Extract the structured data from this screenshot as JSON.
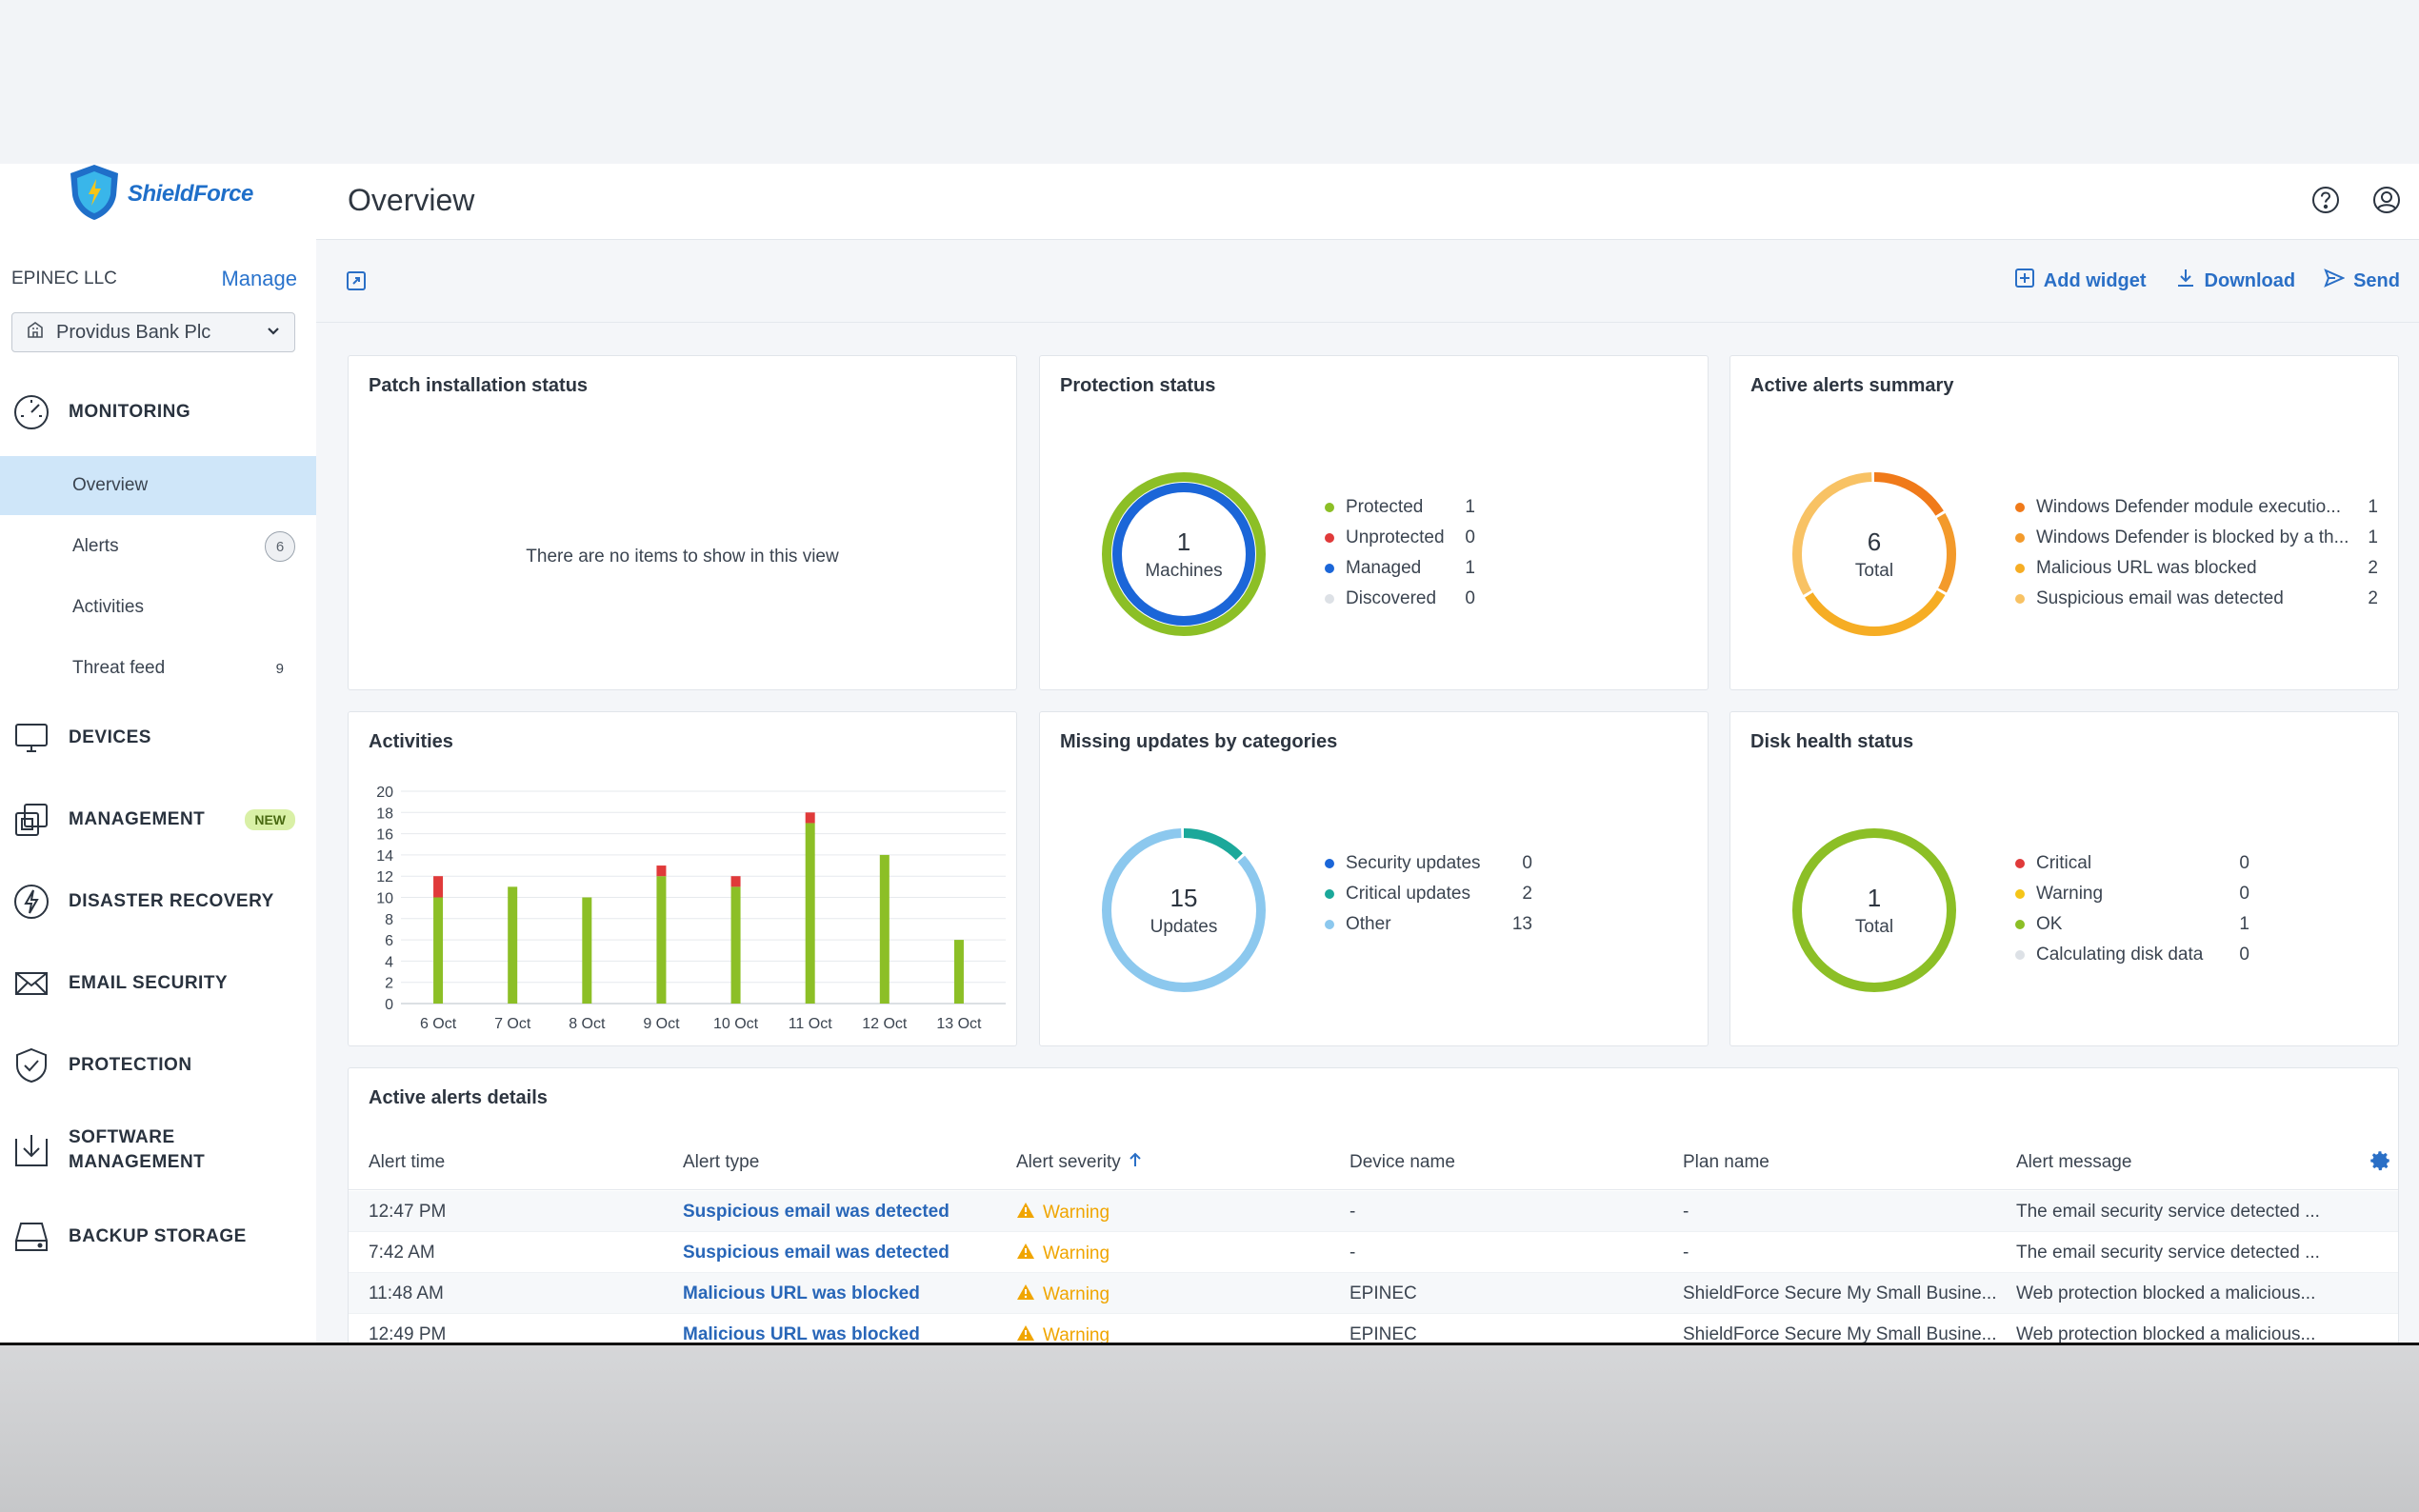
{
  "brand": {
    "name": "ShieldForce"
  },
  "org": {
    "name": "EPINEC LLC",
    "manage_label": "Manage",
    "tenant": "Providus Bank Plc"
  },
  "sidebar": {
    "monitoring": "MONITORING",
    "items": [
      {
        "label": "Overview"
      },
      {
        "label": "Alerts",
        "count": "6"
      },
      {
        "label": "Activities"
      },
      {
        "label": "Threat feed",
        "count": "9"
      }
    ],
    "devices": "DEVICES",
    "management": "MANAGEMENT",
    "management_badge": "NEW",
    "disaster_recovery": "DISASTER RECOVERY",
    "email_security": "EMAIL SECURITY",
    "protection": "PROTECTION",
    "software_management_1": "SOFTWARE",
    "software_management_2": "MANAGEMENT",
    "backup_storage": "BACKUP STORAGE"
  },
  "header": {
    "title": "Overview"
  },
  "toolbar": {
    "add_widget": "Add widget",
    "download": "Download",
    "send": "Send"
  },
  "widgets": {
    "patch": {
      "title": "Patch installation status",
      "empty": "There are no items to show in this view"
    },
    "protection": {
      "title": "Protection status",
      "total": "1",
      "unit": "Machines",
      "legend": [
        {
          "label": "Protected",
          "value": "1",
          "color": "#8cbf26"
        },
        {
          "label": "Unprotected",
          "value": "0",
          "color": "#e03a3a"
        },
        {
          "label": "Managed",
          "value": "1",
          "color": "#1b66d8"
        },
        {
          "label": "Discovered",
          "value": "0",
          "color": "#dde1e6"
        }
      ]
    },
    "alerts_summary": {
      "title": "Active alerts summary",
      "total": "6",
      "unit": "Total",
      "legend": [
        {
          "label": "Windows Defender module executio...",
          "value": "1",
          "color": "#f07a1a"
        },
        {
          "label": "Windows Defender is blocked by a th...",
          "value": "1",
          "color": "#f39a2b"
        },
        {
          "label": "Malicious URL was blocked",
          "value": "2",
          "color": "#f6ad24"
        },
        {
          "label": "Suspicious email was detected",
          "value": "2",
          "color": "#f8c264"
        }
      ]
    },
    "activities": {
      "title": "Activities"
    },
    "missing_updates": {
      "title": "Missing updates by categories",
      "total": "15",
      "unit": "Updates",
      "legend": [
        {
          "label": "Security updates",
          "value": "0",
          "color": "#1b66d8"
        },
        {
          "label": "Critical updates",
          "value": "2",
          "color": "#1ba89a"
        },
        {
          "label": "Other",
          "value": "13",
          "color": "#8cc8ee"
        }
      ]
    },
    "disk": {
      "title": "Disk health status",
      "total": "1",
      "unit": "Total",
      "legend": [
        {
          "label": "Critical",
          "value": "0",
          "color": "#e03a3a"
        },
        {
          "label": "Warning",
          "value": "0",
          "color": "#f5c518"
        },
        {
          "label": "OK",
          "value": "1",
          "color": "#8cbf26"
        },
        {
          "label": "Calculating disk data",
          "value": "0",
          "color": "#dde1e6"
        }
      ]
    }
  },
  "chart_data": {
    "type": "bar",
    "categories": [
      "6 Oct",
      "7 Oct",
      "8 Oct",
      "9 Oct",
      "10 Oct",
      "11 Oct",
      "12 Oct",
      "13 Oct"
    ],
    "series": [
      {
        "values": [
          10,
          11,
          10,
          12,
          11,
          17,
          14,
          6
        ],
        "color": "#8cbf26"
      },
      {
        "values": [
          2,
          0,
          0,
          1,
          1,
          1,
          0,
          0
        ],
        "color": "#e03a3a"
      }
    ],
    "stacked": true,
    "ylim": [
      0,
      20
    ],
    "yticks": [
      0,
      2,
      4,
      6,
      8,
      10,
      12,
      14,
      16,
      18,
      20
    ],
    "grid": true
  },
  "alerts_table": {
    "title": "Active alerts details",
    "columns": [
      "Alert time",
      "Alert type",
      "Alert severity",
      "Device name",
      "Plan name",
      "Alert message"
    ],
    "rows": [
      {
        "time": "12:47 PM",
        "type": "Suspicious email was detected",
        "severity": "Warning",
        "device": "-",
        "plan": "-",
        "message": "The email security service detected ..."
      },
      {
        "time": "7:42 AM",
        "type": "Suspicious email was detected",
        "severity": "Warning",
        "device": "-",
        "plan": "-",
        "message": "The email security service detected ..."
      },
      {
        "time": "11:48 AM",
        "type": "Malicious URL was blocked",
        "severity": "Warning",
        "device": "EPINEC",
        "plan": "ShieldForce Secure My Small Busine...",
        "message": "Web protection blocked a malicious..."
      },
      {
        "time": "12:49 PM",
        "type": "Malicious URL was blocked",
        "severity": "Warning",
        "device": "EPINEC",
        "plan": "ShieldForce Secure My Small Busine...",
        "message": "Web protection blocked a malicious..."
      }
    ]
  }
}
